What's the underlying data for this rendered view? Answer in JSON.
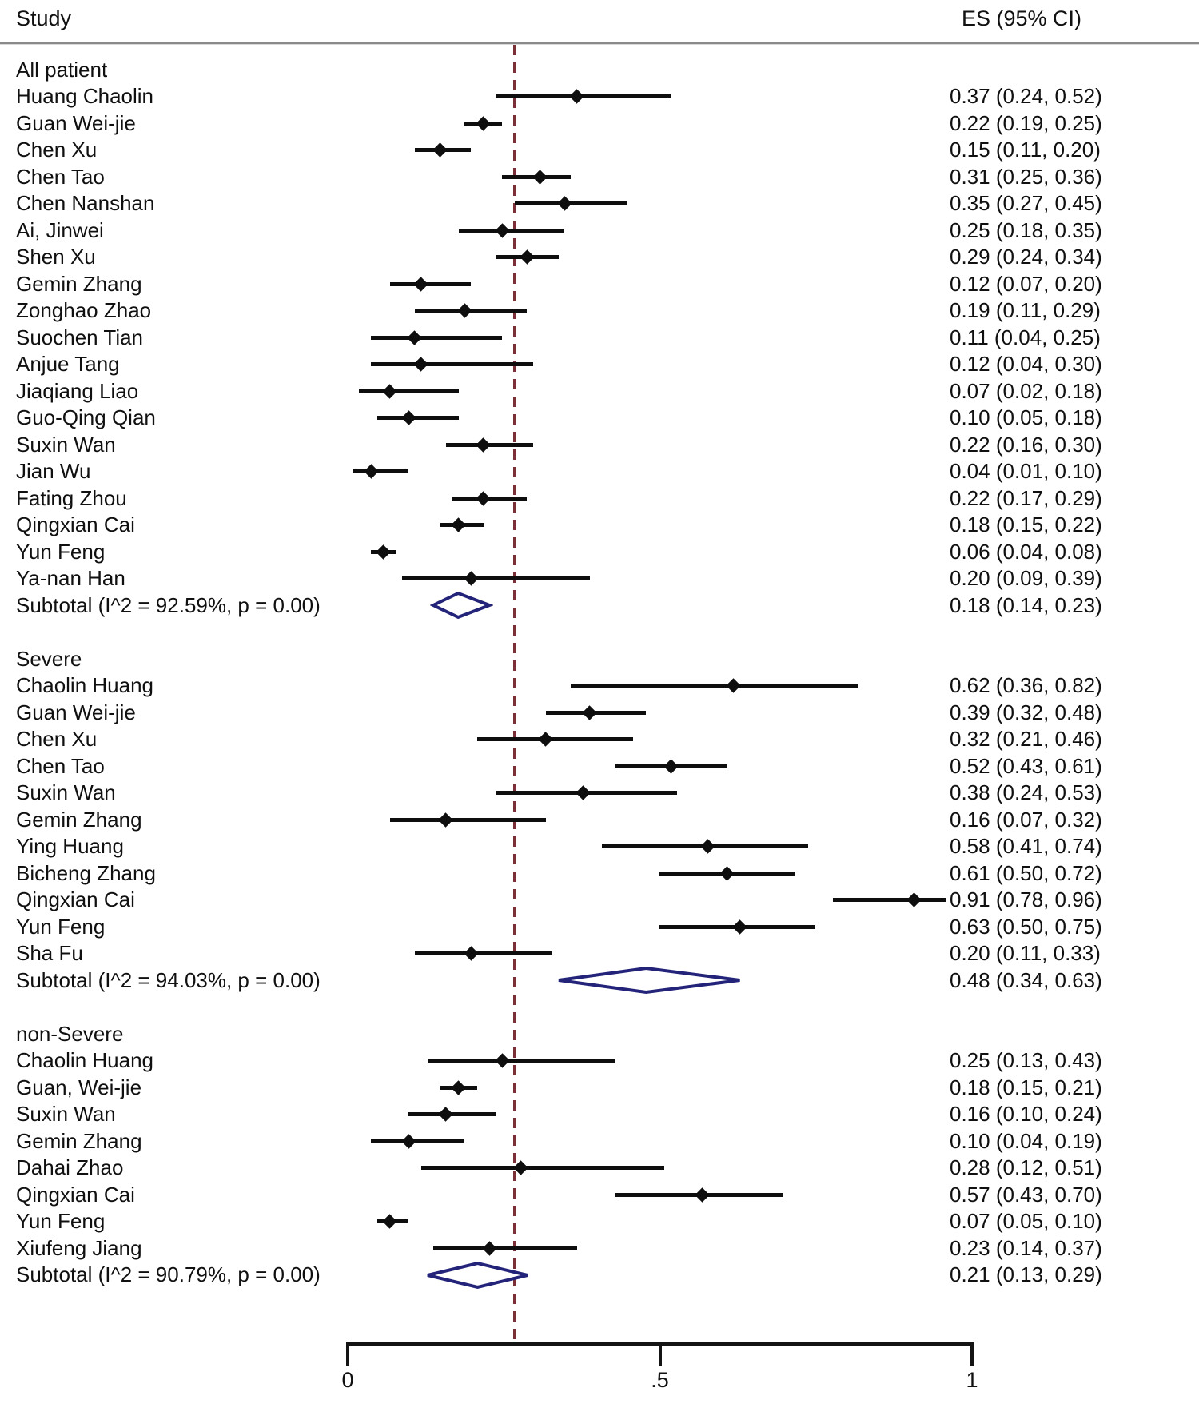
{
  "chart_data": {
    "type": "forest",
    "columns": {
      "study": "Study",
      "es": "ES (95% CI)"
    },
    "xlabel": "",
    "xlim": [
      0,
      1
    ],
    "axis_ticks": [
      {
        "label": "0",
        "value": 0
      },
      {
        "label": ".5",
        "value": 0.5
      },
      {
        "label": "1",
        "value": 1
      }
    ],
    "reference_line": 0.27,
    "colors": {
      "diamond": "#23237a",
      "reference": "#7b2f36",
      "ci": "#0e0e0e"
    },
    "groups": [
      {
        "label": "All patient",
        "studies": [
          {
            "name": "Huang Chaolin",
            "es": 0.37,
            "lo": 0.24,
            "hi": 0.52,
            "ci_text": "0.37 (0.24, 0.52)"
          },
          {
            "name": "Guan Wei-jie",
            "es": 0.22,
            "lo": 0.19,
            "hi": 0.25,
            "ci_text": "0.22 (0.19, 0.25)"
          },
          {
            "name": "Chen Xu",
            "es": 0.15,
            "lo": 0.11,
            "hi": 0.2,
            "ci_text": "0.15 (0.11, 0.20)"
          },
          {
            "name": "Chen Tao",
            "es": 0.31,
            "lo": 0.25,
            "hi": 0.36,
            "ci_text": "0.31 (0.25, 0.36)"
          },
          {
            "name": "Chen Nanshan",
            "es": 0.35,
            "lo": 0.27,
            "hi": 0.45,
            "ci_text": "0.35 (0.27, 0.45)"
          },
          {
            "name": "Ai, Jinwei",
            "es": 0.25,
            "lo": 0.18,
            "hi": 0.35,
            "ci_text": "0.25 (0.18, 0.35)"
          },
          {
            "name": "Shen Xu",
            "es": 0.29,
            "lo": 0.24,
            "hi": 0.34,
            "ci_text": "0.29 (0.24, 0.34)"
          },
          {
            "name": "Gemin Zhang",
            "es": 0.12,
            "lo": 0.07,
            "hi": 0.2,
            "ci_text": "0.12 (0.07, 0.20)"
          },
          {
            "name": "Zonghao Zhao",
            "es": 0.19,
            "lo": 0.11,
            "hi": 0.29,
            "ci_text": "0.19 (0.11, 0.29)"
          },
          {
            "name": "Suochen Tian",
            "es": 0.11,
            "lo": 0.04,
            "hi": 0.25,
            "ci_text": "0.11 (0.04, 0.25)"
          },
          {
            "name": "Anjue Tang",
            "es": 0.12,
            "lo": 0.04,
            "hi": 0.3,
            "ci_text": "0.12 (0.04, 0.30)"
          },
          {
            "name": "Jiaqiang Liao",
            "es": 0.07,
            "lo": 0.02,
            "hi": 0.18,
            "ci_text": "0.07 (0.02, 0.18)"
          },
          {
            "name": "Guo-Qing Qian",
            "es": 0.1,
            "lo": 0.05,
            "hi": 0.18,
            "ci_text": "0.10 (0.05, 0.18)"
          },
          {
            "name": "Suxin Wan",
            "es": 0.22,
            "lo": 0.16,
            "hi": 0.3,
            "ci_text": "0.22 (0.16, 0.30)"
          },
          {
            "name": "Jian Wu",
            "es": 0.04,
            "lo": 0.01,
            "hi": 0.1,
            "ci_text": "0.04 (0.01, 0.10)"
          },
          {
            "name": "Fating Zhou",
            "es": 0.22,
            "lo": 0.17,
            "hi": 0.29,
            "ci_text": "0.22 (0.17, 0.29)"
          },
          {
            "name": "Qingxian Cai",
            "es": 0.18,
            "lo": 0.15,
            "hi": 0.22,
            "ci_text": "0.18 (0.15, 0.22)"
          },
          {
            "name": "Yun Feng",
            "es": 0.06,
            "lo": 0.04,
            "hi": 0.08,
            "ci_text": "0.06 (0.04, 0.08)"
          },
          {
            "name": "Ya-nan Han",
            "es": 0.2,
            "lo": 0.09,
            "hi": 0.39,
            "ci_text": "0.20 (0.09, 0.39)"
          }
        ],
        "subtotal": {
          "label": "Subtotal  (I^2 = 92.59%, p = 0.00)",
          "es": 0.18,
          "lo": 0.14,
          "hi": 0.23,
          "ci_text": "0.18 (0.14, 0.23)"
        }
      },
      {
        "label": "Severe",
        "studies": [
          {
            "name": "Chaolin Huang",
            "es": 0.62,
            "lo": 0.36,
            "hi": 0.82,
            "ci_text": "0.62 (0.36, 0.82)"
          },
          {
            "name": "Guan Wei-jie",
            "es": 0.39,
            "lo": 0.32,
            "hi": 0.48,
            "ci_text": "0.39 (0.32, 0.48)"
          },
          {
            "name": "Chen Xu",
            "es": 0.32,
            "lo": 0.21,
            "hi": 0.46,
            "ci_text": "0.32 (0.21, 0.46)"
          },
          {
            "name": "Chen Tao",
            "es": 0.52,
            "lo": 0.43,
            "hi": 0.61,
            "ci_text": "0.52 (0.43, 0.61)"
          },
          {
            "name": "Suxin Wan",
            "es": 0.38,
            "lo": 0.24,
            "hi": 0.53,
            "ci_text": "0.38 (0.24, 0.53)"
          },
          {
            "name": "Gemin Zhang",
            "es": 0.16,
            "lo": 0.07,
            "hi": 0.32,
            "ci_text": "0.16 (0.07, 0.32)"
          },
          {
            "name": "Ying Huang",
            "es": 0.58,
            "lo": 0.41,
            "hi": 0.74,
            "ci_text": "0.58 (0.41, 0.74)"
          },
          {
            "name": "Bicheng Zhang",
            "es": 0.61,
            "lo": 0.5,
            "hi": 0.72,
            "ci_text": "0.61 (0.50, 0.72)"
          },
          {
            "name": "Qingxian Cai",
            "es": 0.91,
            "lo": 0.78,
            "hi": 0.96,
            "ci_text": "0.91 (0.78, 0.96)"
          },
          {
            "name": "Yun Feng",
            "es": 0.63,
            "lo": 0.5,
            "hi": 0.75,
            "ci_text": "0.63 (0.50, 0.75)"
          },
          {
            "name": "Sha Fu",
            "es": 0.2,
            "lo": 0.11,
            "hi": 0.33,
            "ci_text": "0.20 (0.11, 0.33)"
          }
        ],
        "subtotal": {
          "label": "Subtotal  (I^2 = 94.03%, p = 0.00)",
          "es": 0.48,
          "lo": 0.34,
          "hi": 0.63,
          "ci_text": "0.48 (0.34, 0.63)"
        }
      },
      {
        "label": "non-Severe",
        "studies": [
          {
            "name": "Chaolin Huang",
            "es": 0.25,
            "lo": 0.13,
            "hi": 0.43,
            "ci_text": "0.25 (0.13, 0.43)"
          },
          {
            "name": "Guan, Wei-jie",
            "es": 0.18,
            "lo": 0.15,
            "hi": 0.21,
            "ci_text": "0.18 (0.15, 0.21)"
          },
          {
            "name": "Suxin Wan",
            "es": 0.16,
            "lo": 0.1,
            "hi": 0.24,
            "ci_text": "0.16 (0.10, 0.24)"
          },
          {
            "name": "Gemin Zhang",
            "es": 0.1,
            "lo": 0.04,
            "hi": 0.19,
            "ci_text": "0.10 (0.04, 0.19)"
          },
          {
            "name": "Dahai Zhao",
            "es": 0.28,
            "lo": 0.12,
            "hi": 0.51,
            "ci_text": "0.28 (0.12, 0.51)"
          },
          {
            "name": "Qingxian Cai",
            "es": 0.57,
            "lo": 0.43,
            "hi": 0.7,
            "ci_text": "0.57 (0.43, 0.70)"
          },
          {
            "name": "Yun Feng",
            "es": 0.07,
            "lo": 0.05,
            "hi": 0.1,
            "ci_text": "0.07 (0.05, 0.10)"
          },
          {
            "name": "Xiufeng Jiang",
            "es": 0.23,
            "lo": 0.14,
            "hi": 0.37,
            "ci_text": "0.23 (0.14, 0.37)"
          }
        ],
        "subtotal": {
          "label": "Subtotal  (I^2 = 90.79%, p = 0.00)",
          "es": 0.21,
          "lo": 0.13,
          "hi": 0.29,
          "ci_text": "0.21 (0.13, 0.29)"
        }
      }
    ]
  }
}
